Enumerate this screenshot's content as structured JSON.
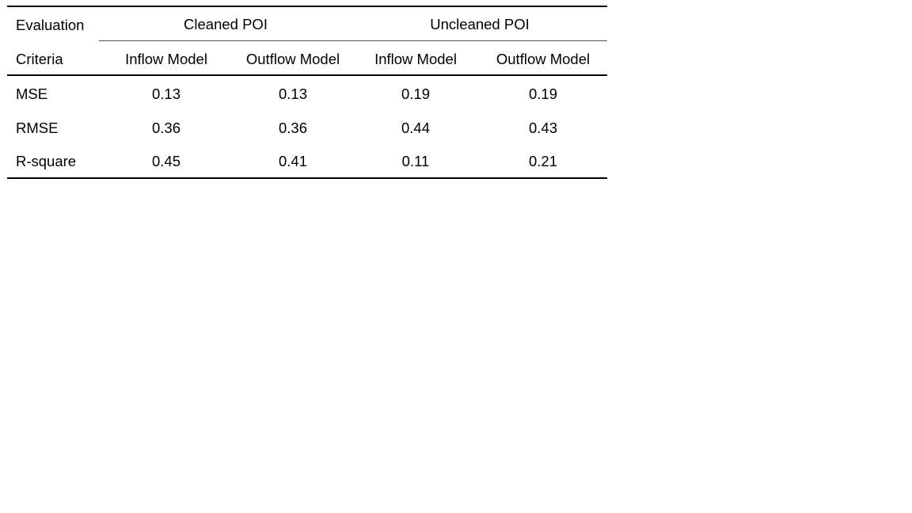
{
  "table": {
    "header": {
      "row1_label": "Evaluation",
      "row2_label": "Criteria",
      "groups": [
        {
          "label": "Cleaned POI",
          "columns": [
            "Inflow Model",
            "Outflow Model"
          ]
        },
        {
          "label": "Uncleaned POI",
          "columns": [
            "Inflow Model",
            "Outflow Model"
          ]
        }
      ]
    },
    "rows": [
      {
        "label": "MSE",
        "values": [
          "0.13",
          "0.13",
          "0.19",
          "0.19"
        ]
      },
      {
        "label": "RMSE",
        "values": [
          "0.36",
          "0.36",
          "0.44",
          "0.43"
        ]
      },
      {
        "label": "R-square",
        "values": [
          "0.45",
          "0.41",
          "0.11",
          "0.21"
        ]
      }
    ]
  }
}
